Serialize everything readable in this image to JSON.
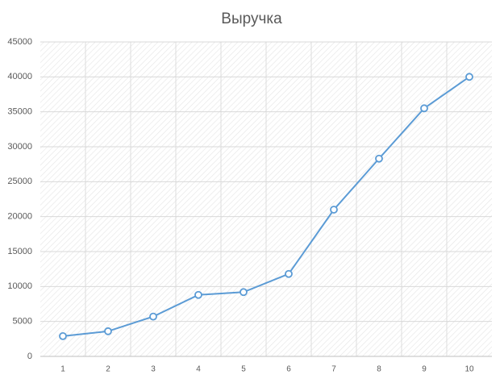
{
  "chart_data": {
    "type": "line",
    "title": "Выручка",
    "categories": [
      "1",
      "2",
      "3",
      "4",
      "5",
      "6",
      "7",
      "8",
      "9",
      "10"
    ],
    "series": [
      {
        "name": "Выручка",
        "color": "#5b9bd5",
        "values": [
          2900,
          3600,
          5700,
          8800,
          9200,
          11800,
          21000,
          28300,
          35500,
          40000
        ]
      }
    ],
    "ylim": [
      0,
      45000
    ],
    "yticks": [
      0,
      5000,
      10000,
      15000,
      20000,
      25000,
      30000,
      35000,
      40000,
      45000
    ],
    "grid": true
  }
}
